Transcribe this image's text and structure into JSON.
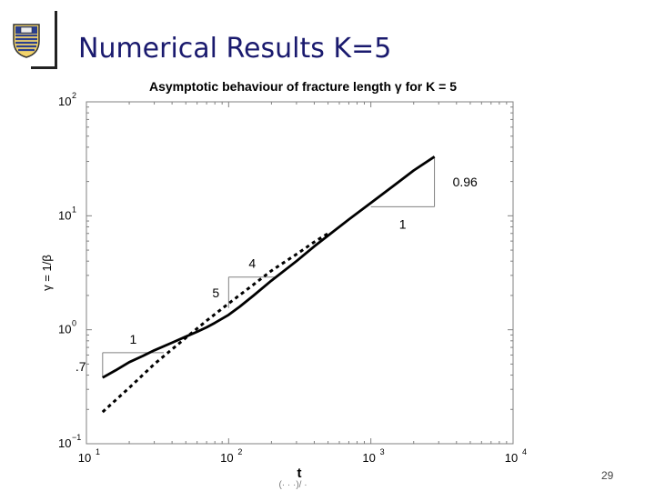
{
  "slide": {
    "title": "Numerical Results K=5",
    "page_number": "29",
    "bottom_fragment": "(· · ·)/ ·"
  },
  "colors": {
    "title": "#1a1a6e",
    "curve": "#000000",
    "axes": "#808080"
  },
  "icons": {
    "logo": "university-crest-icon"
  },
  "chart_data": {
    "type": "line",
    "title": "Asymptotic behaviour of fracture length γ for K = 5",
    "xlabel": "t",
    "ylabel": "γ = 1/β",
    "xscale": "log",
    "yscale": "log",
    "xlim": [
      10,
      10000
    ],
    "ylim": [
      0.1,
      100
    ],
    "grid": false,
    "x_tick_labels": [
      {
        "base": "10",
        "exp": "1"
      },
      {
        "base": "10",
        "exp": "2"
      },
      {
        "base": "10",
        "exp": "3"
      },
      {
        "base": "10",
        "exp": "4"
      }
    ],
    "y_tick_labels": [
      {
        "base": "10",
        "exp": "−1"
      },
      {
        "base": "10",
        "exp": "0"
      },
      {
        "base": "10",
        "exp": "1"
      },
      {
        "base": "10",
        "exp": "2"
      }
    ],
    "series": [
      {
        "style": "solid",
        "x": [
          13,
          16,
          20,
          25,
          30,
          40,
          50,
          60,
          70,
          80,
          100,
          120,
          150,
          200,
          300,
          400,
          500,
          700,
          1000,
          1500,
          2000,
          2800
        ],
        "y": [
          0.38,
          0.44,
          0.52,
          0.59,
          0.66,
          0.77,
          0.87,
          0.96,
          1.05,
          1.15,
          1.35,
          1.6,
          2.0,
          2.7,
          4.0,
          5.4,
          6.7,
          9.3,
          13.0,
          19.0,
          25.0,
          33.0
        ]
      },
      {
        "style": "dashed",
        "x": [
          13,
          20,
          30,
          50,
          70,
          100,
          150,
          200,
          300,
          400,
          500
        ],
        "y": [
          0.19,
          0.31,
          0.5,
          0.85,
          1.2,
          1.7,
          2.5,
          3.3,
          4.6,
          5.9,
          7.0
        ]
      }
    ],
    "slope_triangles": [
      {
        "corner": [
          13,
          0.63
        ],
        "end_x": 35,
        "end_y": 0.63,
        "run_label": "1",
        "rise_label": ".7"
      },
      {
        "corner": [
          100,
          1.55
        ],
        "end_x": 215,
        "end_y": 2.9,
        "run_label": "4",
        "rise_label": "5"
      },
      {
        "corner": [
          1000,
          12.0
        ],
        "end_x": 2800,
        "end_y": 33.0,
        "run_label": "1",
        "rise_label": "0.96"
      }
    ]
  }
}
